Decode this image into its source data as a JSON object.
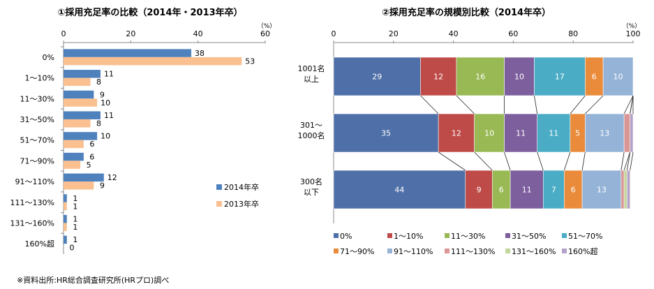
{
  "chart_data": [
    {
      "type": "bar",
      "orientation": "horizontal",
      "title": "①採用充足率の比較（2014年・2013年卒）",
      "unit": "（%）",
      "xlim": [
        0,
        60
      ],
      "ticks": [
        0,
        20,
        40,
        60
      ],
      "categories": [
        "0%",
        "1～10%",
        "11～30%",
        "31～50%",
        "51～70%",
        "71～90%",
        "91～110%",
        "111～130%",
        "131～160%",
        "160%超"
      ],
      "series": [
        {
          "name": "2014年卒",
          "color": "#4f81bd",
          "values": [
            38,
            11,
            9,
            11,
            10,
            6,
            12,
            1,
            1,
            1
          ]
        },
        {
          "name": "2013年卒",
          "color": "#fac090",
          "values": [
            53,
            8,
            10,
            8,
            6,
            5,
            9,
            1,
            1,
            0
          ]
        }
      ],
      "legend_position": "bottom-right"
    },
    {
      "type": "bar",
      "orientation": "horizontal",
      "stacked": true,
      "title": "②採用充足率の規模別比較（2014年卒）",
      "unit": "（%）",
      "xlim": [
        0,
        100
      ],
      "ticks": [
        0,
        20,
        40,
        60,
        80,
        100
      ],
      "categories": [
        [
          "1001名",
          "以上"
        ],
        [
          "301～",
          "1000名"
        ],
        [
          "300名",
          "以下"
        ]
      ],
      "series": [
        {
          "name": "0%",
          "color": "#4f6fa8",
          "values": [
            29,
            35,
            44
          ]
        },
        {
          "name": "1～10%",
          "color": "#be4b48",
          "values": [
            12,
            12,
            9
          ]
        },
        {
          "name": "11～30%",
          "color": "#98b954",
          "values": [
            16,
            10,
            6
          ]
        },
        {
          "name": "31～50%",
          "color": "#7d5f9d",
          "values": [
            10,
            11,
            11
          ]
        },
        {
          "name": "51～70%",
          "color": "#4bacc6",
          "values": [
            17,
            11,
            7
          ]
        },
        {
          "name": "71～90%",
          "color": "#e98b3a",
          "values": [
            6,
            5,
            6
          ]
        },
        {
          "name": "91～110%",
          "color": "#95b3d7",
          "values": [
            10,
            13,
            13
          ]
        },
        {
          "name": "111～130%",
          "color": "#d99694",
          "values": [
            0,
            2,
            1
          ]
        },
        {
          "name": "131～160%",
          "color": "#c3d69b",
          "values": [
            0,
            0,
            1
          ]
        },
        {
          "name": "160%超",
          "color": "#b3a2c7",
          "values": [
            0,
            1,
            1
          ]
        }
      ],
      "legend_position": "bottom"
    }
  ],
  "source_note": "※資料出所:HR総合調査研究所(HRプロ)調べ"
}
